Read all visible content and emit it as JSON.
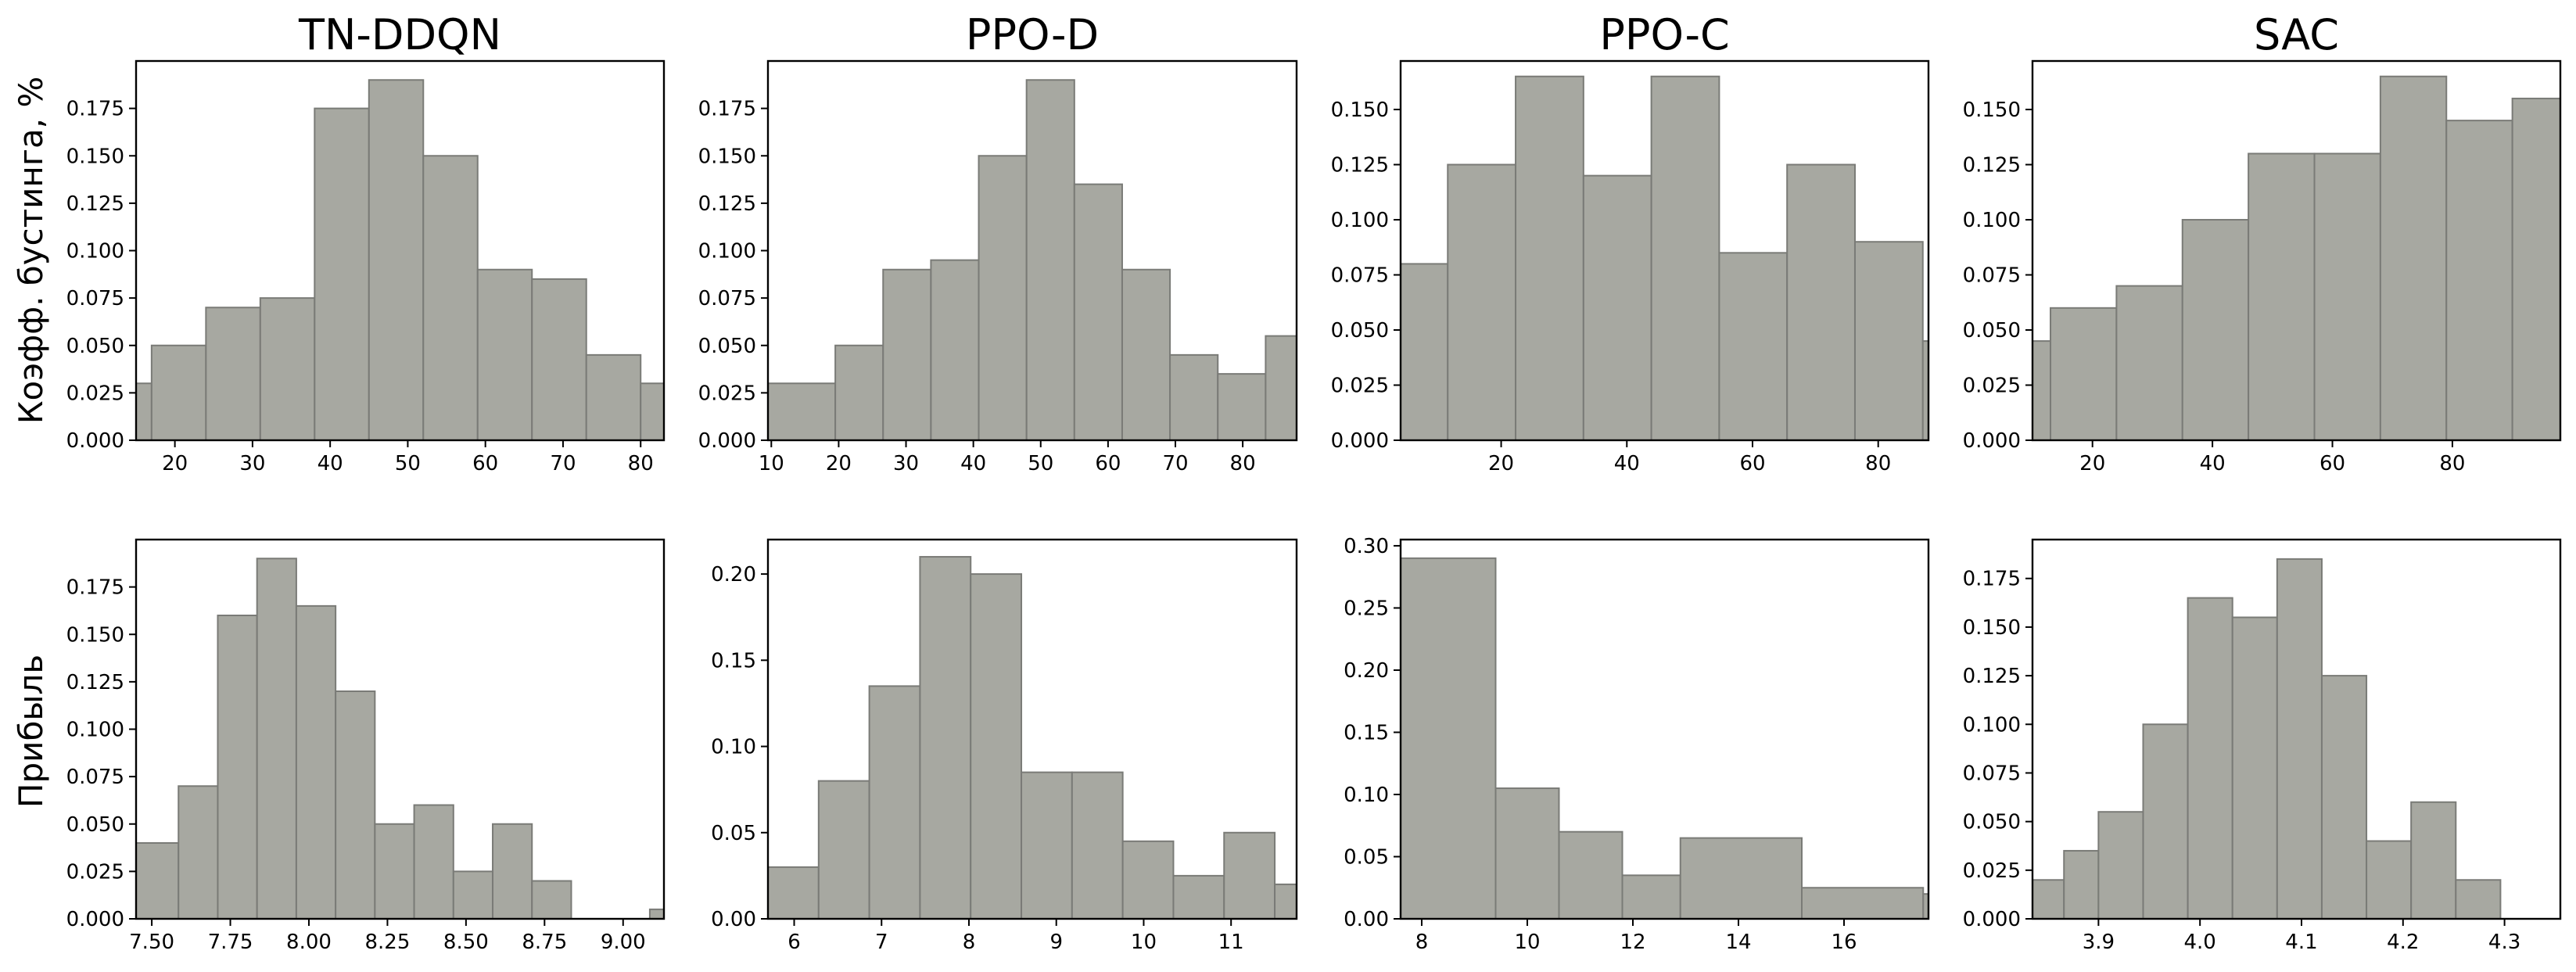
{
  "row_labels": [
    "Коэфф. бустинга, %",
    "Прибыль"
  ],
  "column_titles": [
    "TN-DDQN",
    "PPO-D",
    "PPO-C",
    "SAC"
  ],
  "chart_data": [
    {
      "type": "bar",
      "title": "TN-DDQN",
      "ylabel": "Коэфф. бустинга, %",
      "xlim": [
        15,
        83
      ],
      "ylim": [
        0,
        0.2
      ],
      "xticks": [
        20,
        30,
        40,
        50,
        60,
        70,
        80
      ],
      "yticks": [
        0.0,
        0.025,
        0.05,
        0.075,
        0.1,
        0.125,
        0.15,
        0.175
      ],
      "ytick_decimals": 3,
      "bins": [
        [
          15,
          17
        ],
        [
          17,
          24
        ],
        [
          24,
          31
        ],
        [
          31,
          38
        ],
        [
          38,
          45
        ],
        [
          45,
          52
        ],
        [
          52,
          59
        ],
        [
          59,
          66
        ],
        [
          66,
          73
        ],
        [
          73,
          80
        ],
        [
          80,
          83
        ]
      ],
      "values": [
        0.03,
        0.05,
        0.07,
        0.075,
        0.175,
        0.19,
        0.15,
        0.09,
        0.085,
        0.045,
        0.03
      ]
    },
    {
      "type": "bar",
      "title": "PPO-D",
      "ylabel": "",
      "xlim": [
        9.5,
        88
      ],
      "ylim": [
        0,
        0.2
      ],
      "xticks": [
        10,
        20,
        30,
        40,
        50,
        60,
        70,
        80
      ],
      "yticks": [
        0.0,
        0.025,
        0.05,
        0.075,
        0.1,
        0.125,
        0.15,
        0.175
      ],
      "ytick_decimals": 3,
      "bins": [
        [
          9.5,
          19.5
        ],
        [
          19.5,
          26.6
        ],
        [
          26.6,
          33.7
        ],
        [
          33.7,
          40.8
        ],
        [
          40.8,
          47.9
        ],
        [
          47.9,
          55.0
        ],
        [
          55.0,
          62.1
        ],
        [
          62.1,
          69.2
        ],
        [
          69.2,
          76.3
        ],
        [
          76.3,
          83.4
        ],
        [
          83.4,
          88
        ]
      ],
      "values": [
        0.03,
        0.05,
        0.09,
        0.095,
        0.15,
        0.19,
        0.135,
        0.09,
        0.045,
        0.035,
        0.055
      ]
    },
    {
      "type": "bar",
      "title": "PPO-C",
      "ylabel": "",
      "xlim": [
        4,
        88
      ],
      "ylim": [
        0,
        0.172
      ],
      "xticks": [
        20,
        40,
        60,
        80
      ],
      "yticks": [
        0.0,
        0.025,
        0.05,
        0.075,
        0.1,
        0.125,
        0.15
      ],
      "ytick_decimals": 3,
      "bins": [
        [
          4,
          11.5
        ],
        [
          11.5,
          22.3
        ],
        [
          22.3,
          33.1
        ],
        [
          33.1,
          43.9
        ],
        [
          43.9,
          54.7
        ],
        [
          54.7,
          65.5
        ],
        [
          65.5,
          76.3
        ],
        [
          76.3,
          87.1
        ],
        [
          87.1,
          88
        ]
      ],
      "values": [
        0.08,
        0.125,
        0.165,
        0.12,
        0.165,
        0.085,
        0.125,
        0.09,
        0.045
      ]
    },
    {
      "type": "bar",
      "title": "SAC",
      "ylabel": "",
      "xlim": [
        10,
        98
      ],
      "ylim": [
        0,
        0.172
      ],
      "xticks": [
        20,
        40,
        60,
        80
      ],
      "yticks": [
        0.0,
        0.025,
        0.05,
        0.075,
        0.1,
        0.125,
        0.15
      ],
      "ytick_decimals": 3,
      "bins": [
        [
          10,
          13
        ],
        [
          13,
          24
        ],
        [
          24,
          35
        ],
        [
          35,
          46
        ],
        [
          46,
          57
        ],
        [
          57,
          68
        ],
        [
          68,
          79
        ],
        [
          79,
          90
        ],
        [
          90,
          98
        ]
      ],
      "values": [
        0.045,
        0.06,
        0.07,
        0.1,
        0.13,
        0.13,
        0.165,
        0.145,
        0.155
      ]
    },
    {
      "type": "bar",
      "title": "",
      "ylabel": "Прибыль",
      "xlim": [
        7.45,
        9.13
      ],
      "ylim": [
        0,
        0.2
      ],
      "xticks": [
        7.5,
        7.75,
        8.0,
        8.25,
        8.5,
        8.75,
        9.0
      ],
      "xtick_decimals": 2,
      "yticks": [
        0.0,
        0.025,
        0.05,
        0.075,
        0.1,
        0.125,
        0.15,
        0.175
      ],
      "ytick_decimals": 3,
      "bins": [
        [
          7.45,
          7.585
        ],
        [
          7.585,
          7.71
        ],
        [
          7.71,
          7.835
        ],
        [
          7.835,
          7.96
        ],
        [
          7.96,
          8.085
        ],
        [
          8.085,
          8.21
        ],
        [
          8.21,
          8.335
        ],
        [
          8.335,
          8.46
        ],
        [
          8.46,
          8.585
        ],
        [
          8.585,
          8.71
        ],
        [
          8.71,
          8.835
        ],
        [
          8.835,
          8.96
        ],
        [
          8.96,
          9.085
        ],
        [
          9.085,
          9.13
        ]
      ],
      "values": [
        0.04,
        0.07,
        0.16,
        0.19,
        0.165,
        0.12,
        0.05,
        0.06,
        0.025,
        0.05,
        0.02,
        0.0,
        0.0,
        0.005
      ]
    },
    {
      "type": "bar",
      "title": "",
      "ylabel": "",
      "xlim": [
        5.7,
        11.75
      ],
      "ylim": [
        0,
        0.22
      ],
      "xticks": [
        6,
        7,
        8,
        9,
        10,
        11
      ],
      "yticks": [
        0.0,
        0.05,
        0.1,
        0.15,
        0.2
      ],
      "ytick_decimals": 2,
      "bins": [
        [
          5.7,
          6.28
        ],
        [
          6.28,
          6.86
        ],
        [
          6.86,
          7.44
        ],
        [
          7.44,
          8.02
        ],
        [
          8.02,
          8.6
        ],
        [
          8.6,
          9.18
        ],
        [
          9.18,
          9.76
        ],
        [
          9.76,
          10.34
        ],
        [
          10.34,
          10.92
        ],
        [
          10.92,
          11.5
        ],
        [
          11.5,
          11.75
        ]
      ],
      "values": [
        0.03,
        0.08,
        0.135,
        0.21,
        0.2,
        0.085,
        0.085,
        0.045,
        0.025,
        0.05,
        0.02
      ]
    },
    {
      "type": "bar",
      "title": "",
      "ylabel": "",
      "xlim": [
        7.6,
        17.6
      ],
      "ylim": [
        0,
        0.305
      ],
      "xticks": [
        8,
        10,
        12,
        14,
        16
      ],
      "yticks": [
        0.0,
        0.05,
        0.1,
        0.15,
        0.2,
        0.25,
        0.3
      ],
      "ytick_decimals": 2,
      "bins": [
        [
          7.6,
          9.4
        ],
        [
          9.4,
          10.6
        ],
        [
          10.6,
          11.8
        ],
        [
          11.8,
          12.9
        ],
        [
          12.9,
          15.2
        ],
        [
          15.2,
          17.5
        ],
        [
          17.5,
          17.6
        ]
      ],
      "values": [
        0.29,
        0.105,
        0.07,
        0.035,
        0.065,
        0.025,
        0.02
      ]
    },
    {
      "type": "bar",
      "title": "",
      "ylabel": "",
      "xlim": [
        3.835,
        4.355
      ],
      "ylim": [
        0,
        0.195
      ],
      "xticks": [
        3.9,
        4.0,
        4.1,
        4.2,
        4.3
      ],
      "xtick_decimals": 1,
      "yticks": [
        0.0,
        0.025,
        0.05,
        0.075,
        0.1,
        0.125,
        0.15,
        0.175
      ],
      "ytick_decimals": 3,
      "bins": [
        [
          3.835,
          3.866
        ],
        [
          3.866,
          3.9
        ],
        [
          3.9,
          3.944
        ],
        [
          3.944,
          3.988
        ],
        [
          3.988,
          4.032
        ],
        [
          4.032,
          4.076
        ],
        [
          4.076,
          4.12
        ],
        [
          4.12,
          4.164
        ],
        [
          4.164,
          4.208
        ],
        [
          4.208,
          4.252
        ],
        [
          4.252,
          4.296
        ],
        [
          4.296,
          4.355
        ]
      ],
      "values": [
        0.02,
        0.035,
        0.055,
        0.1,
        0.165,
        0.155,
        0.185,
        0.125,
        0.04,
        0.06,
        0.02,
        0.0
      ]
    }
  ]
}
